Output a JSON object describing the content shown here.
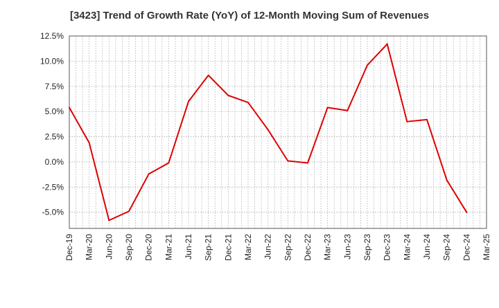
{
  "chart_data": {
    "type": "line",
    "title": "[3423]  Trend of Growth Rate (YoY) of 12-Month Moving Sum of Revenues",
    "xlabel": "",
    "ylabel": "",
    "x_ticks": [
      "Dec-19",
      "Mar-20",
      "Jun-20",
      "Sep-20",
      "Dec-20",
      "Mar-21",
      "Jun-21",
      "Sep-21",
      "Dec-21",
      "Mar-22",
      "Jun-22",
      "Sep-22",
      "Dec-22",
      "Mar-23",
      "Jun-23",
      "Sep-23",
      "Dec-23",
      "Mar-24",
      "Jun-24",
      "Sep-24",
      "Dec-24",
      "Mar-25"
    ],
    "y_ticks": [
      "12.5%",
      "10.0%",
      "7.5%",
      "5.0%",
      "2.5%",
      "0.0%",
      "-2.5%",
      "-5.0%"
    ],
    "y_tick_values": [
      12.5,
      10.0,
      7.5,
      5.0,
      2.5,
      0.0,
      -2.5,
      -5.0
    ],
    "ylim": [
      -6.6,
      12.5
    ],
    "grid": true,
    "line_color": "#dd0000",
    "series": [
      {
        "x": [
          "Dec-19",
          "Mar-20",
          "Jun-20",
          "Sep-20",
          "Dec-20",
          "Mar-21",
          "Jun-21",
          "Sep-21",
          "Dec-21",
          "Mar-22",
          "Jun-22",
          "Sep-22",
          "Dec-22",
          "Mar-23",
          "Jun-23",
          "Sep-23",
          "Dec-23",
          "Mar-24",
          "Jun-24",
          "Sep-24",
          "Dec-24"
        ],
        "values": [
          5.4,
          1.9,
          -5.8,
          -4.9,
          -1.2,
          -0.1,
          6.0,
          8.6,
          6.6,
          5.9,
          3.2,
          0.1,
          -0.1,
          5.4,
          5.1,
          9.6,
          11.7,
          4.0,
          4.2,
          -1.8,
          -5.0
        ]
      }
    ]
  }
}
